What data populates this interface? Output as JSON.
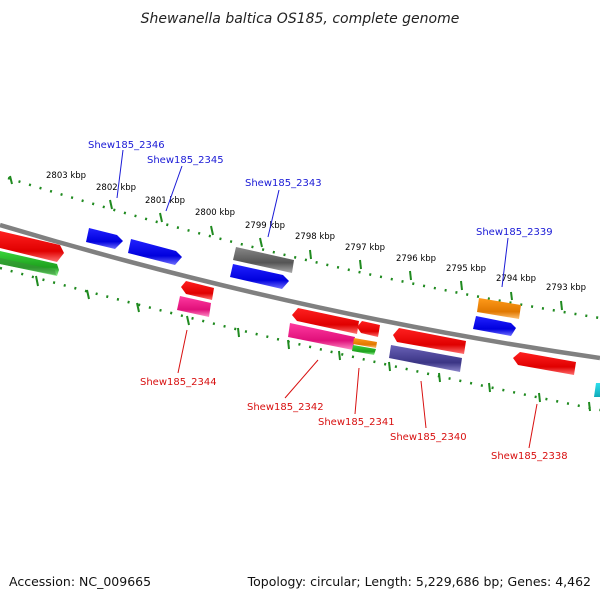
{
  "title": "Shewanella baltica OS185, complete genome",
  "footer": {
    "accession": "Accession: NC_009665",
    "topology": "Topology: circular; Length: 5,229,686 bp; Genes: 4,462"
  },
  "scale_ticks": [
    "2803 kbp",
    "2802 kbp",
    "2801 kbp",
    "2800 kbp",
    "2799 kbp",
    "2798 kbp",
    "2797 kbp",
    "2796 kbp",
    "2795 kbp",
    "2794 kbp",
    "2793 kbp"
  ],
  "gene_labels": {
    "forward": [
      "Shew185_2346",
      "Shew185_2345",
      "Shew185_2343",
      "Shew185_2339"
    ],
    "reverse": [
      "Shew185_2344",
      "Shew185_2342",
      "Shew185_2341",
      "Shew185_2340",
      "Shew185_2338"
    ]
  },
  "colors": {
    "backbone": "#7f7f7f",
    "ticks": "#1f8a1f",
    "forward_label": "#1a1ad6",
    "reverse_label": "#d81010"
  }
}
